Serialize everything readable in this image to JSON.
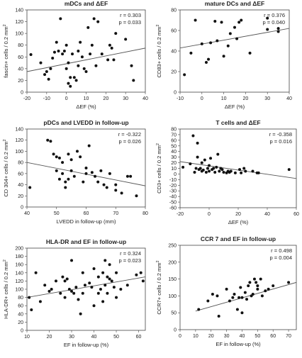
{
  "chart_data": [
    {
      "type": "scatter",
      "title": "mDCs and ΔEF",
      "xlabel": "ΔEF (%)",
      "ylabel": "fascin+ cells / 0.2 mm²",
      "xlim": [
        -20,
        40
      ],
      "ylim": [
        0,
        140
      ],
      "xticks": [
        -20,
        -10,
        0,
        10,
        20,
        30,
        40
      ],
      "yticks": [
        0,
        20,
        40,
        60,
        80,
        100,
        120,
        140
      ],
      "annotations": [
        "r = 0.303",
        "p = 0.033"
      ],
      "fit_line": [
        [
          -20,
          35
        ],
        [
          40,
          75
        ]
      ],
      "x": [
        -18,
        -13,
        -11,
        -10,
        -9,
        -8,
        -7,
        -6,
        -5,
        -4,
        -3,
        -2,
        -1,
        0,
        0,
        1,
        1,
        2,
        2,
        3,
        4,
        5,
        6,
        6,
        7,
        8,
        9,
        10,
        11,
        12,
        13,
        14,
        15,
        16,
        18,
        21,
        22,
        23,
        24,
        25,
        30,
        33,
        34
      ],
      "y": [
        64,
        50,
        30,
        35,
        22,
        40,
        58,
        68,
        85,
        70,
        125,
        65,
        70,
        40,
        80,
        15,
        50,
        25,
        10,
        65,
        25,
        20,
        45,
        70,
        85,
        60,
        40,
        35,
        110,
        65,
        80,
        125,
        45,
        120,
        65,
        55,
        80,
        75,
        55,
        100,
        90,
        45,
        20
      ]
    },
    {
      "type": "scatter",
      "title": "mature DCs and ΔEF",
      "xlabel": "ΔEF (%)",
      "ylabel": "CD83+ cells / 0.2 mm²",
      "xlim": [
        -10,
        40
      ],
      "ylim": [
        0,
        80
      ],
      "xticks": [
        -10,
        0,
        10,
        20,
        30,
        40
      ],
      "yticks": [
        0,
        20,
        40,
        60,
        80
      ],
      "annotations": [
        "r = 0.376",
        "p = 0.040"
      ],
      "fit_line": [
        [
          -10,
          43
        ],
        [
          40,
          62
        ]
      ],
      "x": [
        -8,
        -5,
        -3,
        0,
        2,
        3,
        4,
        6,
        7,
        9,
        10,
        12,
        13,
        15,
        16,
        17,
        18,
        22,
        30,
        30,
        35,
        35
      ],
      "y": [
        17,
        38,
        70,
        47,
        29,
        32,
        48,
        69,
        50,
        68,
        35,
        45,
        57,
        63,
        52,
        68,
        70,
        38,
        72,
        61,
        59,
        62
      ]
    },
    {
      "type": "scatter",
      "title": "pDCs and LVEDD in follow-up",
      "xlabel": "LVEDD in follow-up (mm)",
      "ylabel": "CD 304+ cells / 0.2 mm²",
      "xlim": [
        40,
        80
      ],
      "ylim": [
        0,
        140
      ],
      "xticks": [
        40,
        50,
        60,
        70,
        80
      ],
      "yticks": [
        0,
        20,
        40,
        60,
        80,
        100,
        120,
        140
      ],
      "annotations": [
        "r = -0.322",
        "p = 0.026"
      ],
      "fit_line": [
        [
          40,
          80
        ],
        [
          80,
          38
        ]
      ],
      "x": [
        41,
        47,
        48,
        49,
        50,
        50,
        51,
        51,
        52,
        52,
        53,
        53,
        54,
        54,
        55,
        55,
        56,
        57,
        58,
        59,
        60,
        60,
        61,
        62,
        63,
        64,
        65,
        66,
        67,
        68,
        70,
        70,
        72,
        74,
        75,
        77
      ],
      "y": [
        35,
        120,
        118,
        95,
        65,
        90,
        88,
        50,
        60,
        80,
        45,
        35,
        95,
        50,
        85,
        65,
        55,
        100,
        90,
        45,
        70,
        60,
        110,
        62,
        55,
        45,
        65,
        40,
        35,
        60,
        40,
        30,
        25,
        55,
        55,
        20
      ]
    },
    {
      "type": "scatter",
      "title": "T cells and ΔEF",
      "xlabel": "ΔEF (%)",
      "ylabel": "CD3+ cells / 0.2 mm²",
      "xlim": [
        -20,
        60
      ],
      "ylim": [
        -60,
        80
      ],
      "xticks": [
        -20,
        0,
        20,
        40,
        60
      ],
      "yticks": [
        -60,
        -50,
        -40,
        -30,
        -20,
        -10,
        0,
        10,
        20,
        30,
        40,
        50,
        60,
        70,
        80
      ],
      "annotations": [
        "r = -0.358",
        "p = 0.016"
      ],
      "fit_line": [
        [
          -20,
          22
        ],
        [
          60,
          -8
        ]
      ],
      "x": [
        -18,
        -13,
        -11,
        -10,
        -9,
        -8,
        -8,
        -7,
        -6,
        -5,
        -5,
        -4,
        -3,
        -2,
        -1,
        0,
        0,
        1,
        2,
        3,
        4,
        5,
        6,
        7,
        8,
        9,
        10,
        12,
        13,
        14,
        15,
        18,
        21,
        22,
        24,
        25,
        30,
        33,
        34,
        55
      ],
      "y": [
        12,
        18,
        68,
        3,
        10,
        30,
        55,
        8,
        10,
        20,
        5,
        7,
        25,
        3,
        10,
        5,
        15,
        28,
        8,
        10,
        3,
        12,
        35,
        5,
        10,
        8,
        3,
        2,
        5,
        3,
        5,
        2,
        8,
        2,
        10,
        5,
        5,
        2,
        2,
        8
      ]
    },
    {
      "type": "scatter",
      "title": "HLA-DR and EF in follow-up",
      "xlabel": "EF in follow-up (%)",
      "ylabel": "HLA-DR+ cells / 0.2 mm²",
      "xlim": [
        10,
        63
      ],
      "ylim": [
        0,
        200
      ],
      "xticks": [
        10,
        20,
        30,
        40,
        50,
        60
      ],
      "yticks": [
        0,
        20,
        40,
        60,
        80,
        100,
        120,
        140,
        160,
        180,
        200
      ],
      "annotations": [
        "r = 0.324",
        "p = 0.023"
      ],
      "fit_line": [
        [
          10,
          80
        ],
        [
          63,
          130
        ]
      ],
      "x": [
        11,
        12,
        14,
        16,
        18,
        20,
        21,
        23,
        25,
        26,
        27,
        27,
        28,
        29,
        30,
        30,
        31,
        32,
        33,
        34,
        35,
        35,
        36,
        38,
        39,
        40,
        40,
        42,
        42,
        43,
        44,
        44,
        45,
        45,
        46,
        46,
        47,
        47,
        48,
        49,
        50,
        50,
        52,
        55,
        59,
        61,
        62
      ],
      "y": [
        80,
        50,
        140,
        70,
        110,
        95,
        100,
        120,
        90,
        130,
        120,
        80,
        125,
        100,
        170,
        95,
        90,
        105,
        75,
        40,
        140,
        90,
        110,
        115,
        105,
        150,
        60,
        130,
        90,
        100,
        140,
        70,
        170,
        110,
        130,
        90,
        125,
        160,
        120,
        105,
        140,
        80,
        100,
        110,
        135,
        140,
        120
      ]
    },
    {
      "type": "scatter",
      "title": "CCR 7 and EF in follow-up",
      "xlabel": "EF in follow-up (%)",
      "ylabel": "CCR7+ cells / 0.2 mm²",
      "xlim": [
        0,
        75
      ],
      "ylim": [
        0,
        250
      ],
      "xticks": [
        0,
        10,
        20,
        30,
        40,
        50,
        60,
        70
      ],
      "yticks": [
        0,
        50,
        100,
        150,
        200,
        250
      ],
      "annotations": [
        "r = 0.498",
        "p = 0.004"
      ],
      "fit_line": [
        [
          10,
          55
        ],
        [
          75,
          140
        ]
      ],
      "x": [
        12,
        18,
        21,
        24,
        25,
        30,
        32,
        34,
        35,
        37,
        38,
        39,
        40,
        40,
        42,
        43,
        44,
        45,
        46,
        47,
        48,
        49,
        50,
        50,
        52,
        53,
        55,
        57,
        60,
        70
      ],
      "y": [
        60,
        85,
        105,
        100,
        40,
        120,
        85,
        95,
        105,
        60,
        95,
        125,
        50,
        95,
        110,
        90,
        130,
        140,
        100,
        105,
        150,
        140,
        130,
        120,
        150,
        100,
        115,
        120,
        130,
        140
      ]
    }
  ]
}
